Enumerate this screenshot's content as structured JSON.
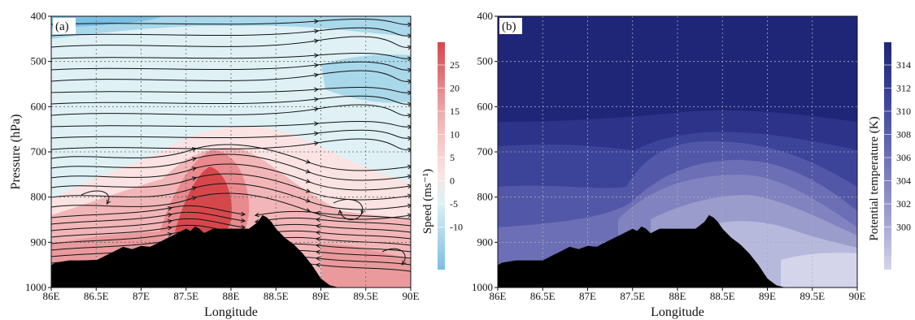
{
  "chart_data": [
    {
      "type": "heatmap",
      "panel_label": "(a)",
      "xlabel": "Longitude",
      "ylabel": "Pressure (hPa)",
      "x_ticks": [
        "86E",
        "86.5E",
        "87E",
        "87.5E",
        "88E",
        "88.5E",
        "89E",
        "89.5E",
        "90E"
      ],
      "y_ticks": [
        "400",
        "500",
        "600",
        "700",
        "800",
        "900",
        "1000"
      ],
      "xlim": [
        86,
        90
      ],
      "ylim": [
        1000,
        400
      ],
      "grid": true,
      "colorbar": {
        "title": "Speed (ms⁻¹)",
        "ticks": [
          "25",
          "20",
          "15",
          "10",
          "5",
          "0",
          "-5",
          "-10"
        ],
        "range": [
          -12.5,
          30
        ],
        "colors": {
          "strong_positive": "#d6474c",
          "positive": "#f2b6b8",
          "near_zero": "#fbe3e3",
          "weak_negative": "#dff1f5",
          "negative": "#a9d8ea",
          "strong_negative": "#7cbfe2"
        }
      },
      "overlay": "streamlines",
      "terrain_color": "#000000",
      "terrain_profile": {
        "lon": [
          86.0,
          86.05,
          86.2,
          86.35,
          86.5,
          86.6,
          86.7,
          86.8,
          86.9,
          87.0,
          87.1,
          87.2,
          87.3,
          87.4,
          87.5,
          87.55,
          87.6,
          87.65,
          87.7,
          87.75,
          87.8,
          88.0,
          88.2,
          88.3,
          88.35,
          88.4,
          88.45,
          88.5,
          88.6,
          88.7,
          88.8,
          88.9,
          89.0,
          89.1,
          89.2,
          90.0
        ],
        "p": [
          950,
          945,
          940,
          940,
          940,
          930,
          920,
          910,
          915,
          908,
          910,
          900,
          890,
          880,
          870,
          875,
          865,
          870,
          880,
          875,
          870,
          870,
          870,
          855,
          840,
          845,
          855,
          870,
          890,
          905,
          925,
          950,
          980,
          995,
          1000,
          1000
        ]
      }
    },
    {
      "type": "heatmap",
      "panel_label": "(b)",
      "xlabel": "Longitude",
      "ylabel": "",
      "x_ticks": [
        "86E",
        "86.5E",
        "87E",
        "87.5E",
        "88E",
        "88.5E",
        "89E",
        "89.5E",
        "90E"
      ],
      "y_ticks": [
        "400",
        "500",
        "600",
        "700",
        "800",
        "900",
        "1000"
      ],
      "xlim": [
        86,
        90
      ],
      "ylim": [
        1000,
        400
      ],
      "grid": true,
      "colorbar": {
        "title": "Potential temperature (K)",
        "ticks": [
          "314",
          "312",
          "310",
          "308",
          "306",
          "304",
          "302",
          "300"
        ],
        "range": [
          298,
          316
        ],
        "colors": {
          "warmest": "#1f2678",
          "warm": "#3c449a",
          "mid": "#6c6fb5",
          "cool": "#9a9ccc",
          "coolest": "#d4d5ea"
        }
      },
      "terrain_color": "#000000",
      "terrain_profile": {
        "lon": [
          86.0,
          86.05,
          86.2,
          86.35,
          86.5,
          86.6,
          86.7,
          86.8,
          86.9,
          87.0,
          87.1,
          87.2,
          87.3,
          87.4,
          87.5,
          87.55,
          87.6,
          87.65,
          87.7,
          87.75,
          87.8,
          88.0,
          88.2,
          88.3,
          88.35,
          88.4,
          88.45,
          88.5,
          88.6,
          88.7,
          88.8,
          88.9,
          89.0,
          89.1,
          89.2,
          90.0
        ],
        "p": [
          950,
          945,
          940,
          940,
          940,
          930,
          920,
          910,
          915,
          908,
          910,
          900,
          890,
          880,
          870,
          875,
          865,
          870,
          880,
          875,
          870,
          870,
          870,
          855,
          840,
          845,
          855,
          870,
          890,
          905,
          925,
          950,
          980,
          995,
          1000,
          1000
        ]
      }
    }
  ]
}
